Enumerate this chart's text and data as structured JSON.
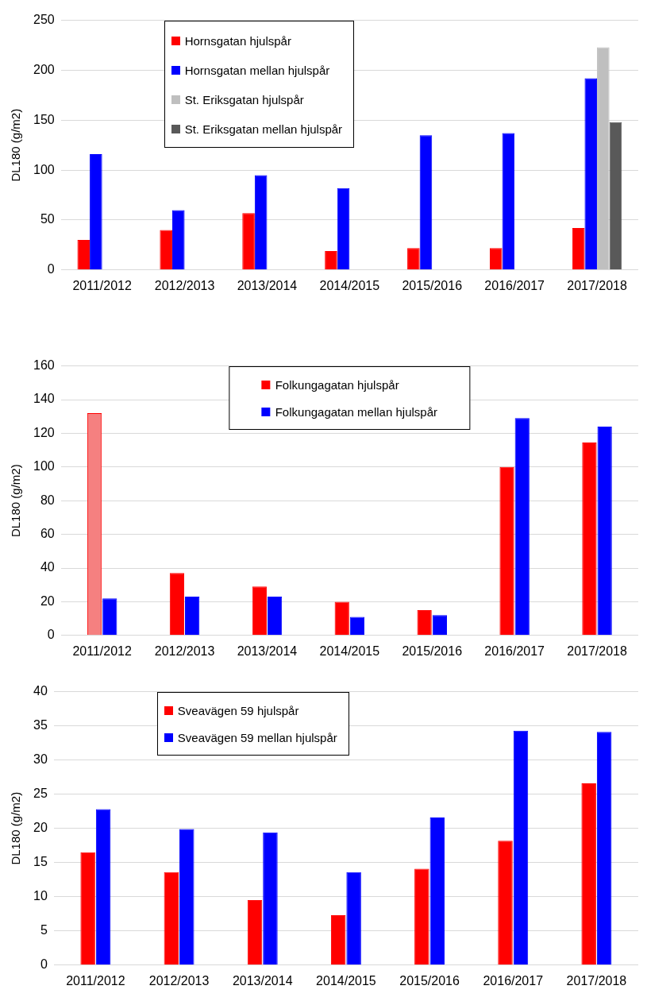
{
  "chart_data": [
    {
      "type": "bar",
      "categories": [
        "2011/2012",
        "2012/2013",
        "2013/2014",
        "2014/2015",
        "2015/2016",
        "2016/2017",
        "2017/2018"
      ],
      "ylabel": "DL180 (g/m2)",
      "ylim": [
        0,
        250
      ],
      "yticks": [
        0,
        50,
        100,
        150,
        200,
        250
      ],
      "grid": "y",
      "legend": "top left",
      "series": [
        {
          "name": "Hornsgatan hjulspår",
          "color": "#ff0000",
          "values": [
            30,
            40,
            57,
            19,
            22,
            22,
            42
          ]
        },
        {
          "name": "Hornsgatan mellan hjulspår",
          "color": "#0000ff",
          "values": [
            116,
            60,
            95,
            82,
            135,
            137,
            192
          ]
        },
        {
          "name": "St. Eriksgatan hjulspår",
          "color": "#bfbfbf",
          "values": [
            null,
            null,
            null,
            null,
            null,
            null,
            223
          ]
        },
        {
          "name": "St. Eriksgatan mellan hjulspår",
          "color": "#595959",
          "values": [
            null,
            null,
            null,
            null,
            null,
            null,
            148
          ]
        }
      ]
    },
    {
      "type": "bar",
      "categories": [
        "2011/2012",
        "2012/2013",
        "2013/2014",
        "2014/2015",
        "2015/2016",
        "2016/2017",
        "2017/2018"
      ],
      "ylabel": "DL180 (g/m2)",
      "ylim": [
        0,
        160
      ],
      "yticks": [
        0,
        20,
        40,
        60,
        80,
        100,
        120,
        140,
        160
      ],
      "grid": "y",
      "legend": "top",
      "series": [
        {
          "name": "Folkungagatan hjulspår",
          "color": "#ff0000",
          "colors": [
            "#f58080",
            "#ff0000",
            "#ff0000",
            "#ff0000",
            "#ff0000",
            "#ff0000",
            "#ff0000"
          ],
          "values": [
            132,
            37,
            29,
            20,
            15,
            100,
            114.5
          ]
        },
        {
          "name": "Folkungagatan mellan hjulspår",
          "color": "#0000ff",
          "values": [
            22,
            23,
            23,
            11,
            12,
            129,
            124
          ]
        }
      ]
    },
    {
      "type": "bar",
      "categories": [
        "2011/2012",
        "2012/2013",
        "2013/2014",
        "2014/2015",
        "2015/2016",
        "2016/2017",
        "2017/2018"
      ],
      "ylabel": "DL180 (g/m2)",
      "ylim": [
        0,
        40
      ],
      "yticks": [
        0,
        5,
        10,
        15,
        20,
        25,
        30,
        35,
        40
      ],
      "grid": "y",
      "legend": "top left",
      "series": [
        {
          "name": "Sveavägen 59 hjulspår",
          "color": "#ff0000",
          "values": [
            16.5,
            13.6,
            9.5,
            7.3,
            14.1,
            18.2,
            26.6
          ]
        },
        {
          "name": "Sveavägen 59 mellan hjulspår",
          "color": "#0000ff",
          "values": [
            22.8,
            19.9,
            19.4,
            13.6,
            21.6,
            34.3,
            34.1
          ]
        }
      ]
    }
  ]
}
